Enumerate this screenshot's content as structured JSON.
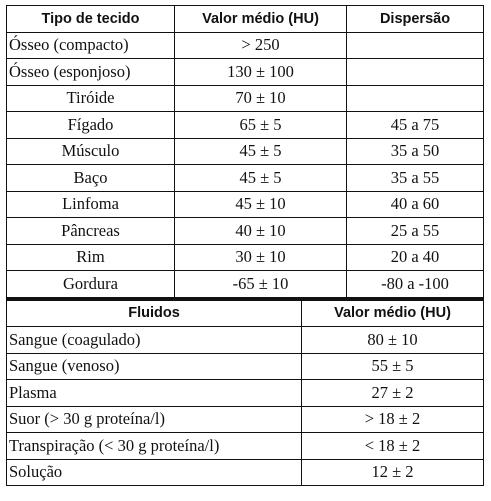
{
  "tissue_table": {
    "headers": [
      "Tipo de tecido",
      "Valor médio (HU)",
      "Dispersão"
    ],
    "rows": [
      [
        "Ósseo (compacto)",
        "> 250",
        ""
      ],
      [
        "Ósseo (esponjoso)",
        "130 ± 100",
        ""
      ],
      [
        "Tiróide",
        "70 ± 10",
        ""
      ],
      [
        "Fígado",
        "65 ± 5",
        "45 a 75"
      ],
      [
        "Músculo",
        "45 ± 5",
        "35 a 50"
      ],
      [
        "Baço",
        "45 ± 5",
        "35 a 55"
      ],
      [
        "Linfoma",
        "45 ± 10",
        "40 a 60"
      ],
      [
        "Pâncreas",
        "40 ± 10",
        "25 a 55"
      ],
      [
        "Rim",
        "30 ± 10",
        "20 a 40"
      ],
      [
        "Gordura",
        "-65 ± 10",
        "-80 a -100"
      ]
    ]
  },
  "fluid_table": {
    "headers": [
      "Fluidos",
      "Valor médio (HU)"
    ],
    "rows": [
      [
        "Sangue (coagulado)",
        "80 ± 10"
      ],
      [
        "Sangue (venoso)",
        "55 ± 5"
      ],
      [
        "Plasma",
        "27 ± 2"
      ],
      [
        "Suor (> 30 g proteína/l)",
        "> 18 ± 2"
      ],
      [
        "Transpiração (< 30 g proteína/l)",
        "< 18 ± 2"
      ],
      [
        "Solução",
        "12 ± 2"
      ]
    ]
  }
}
